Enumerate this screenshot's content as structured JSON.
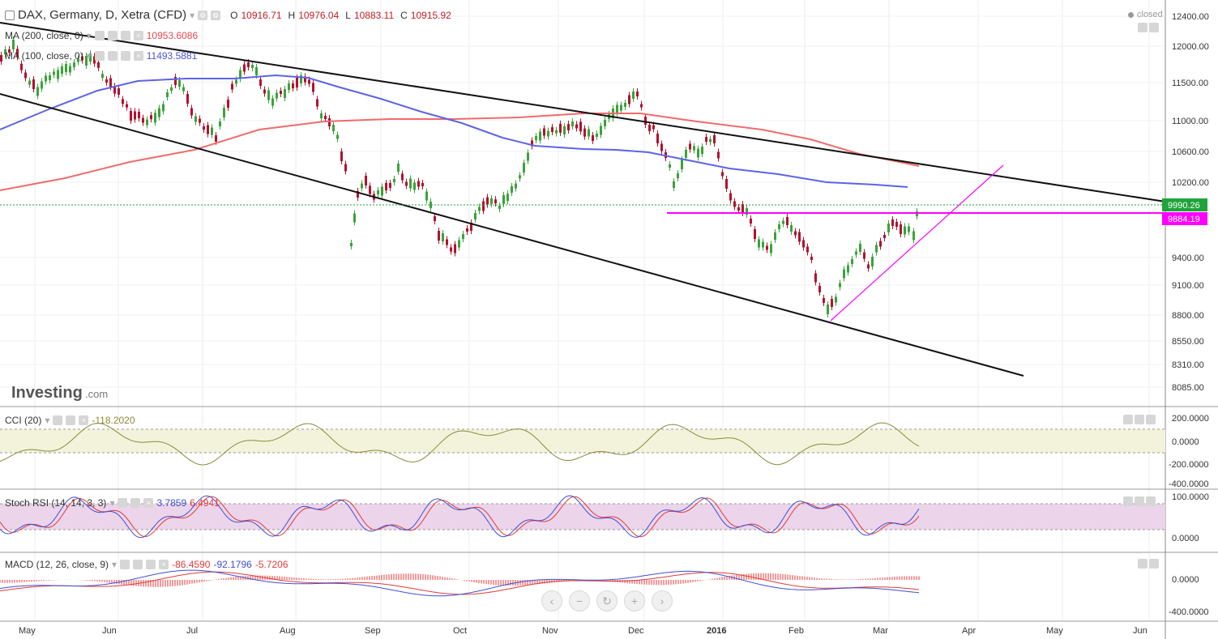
{
  "main_header": {
    "symbol": "DAX, Germany, D, Xetra (CFD)",
    "ohlc": [
      {
        "k": "O",
        "v": "10916.71"
      },
      {
        "k": "H",
        "v": "10976.04"
      },
      {
        "k": "L",
        "v": "10883.11"
      },
      {
        "k": "C",
        "v": "10915.92"
      }
    ],
    "status": "closed"
  },
  "indicators": {
    "ma200": {
      "label": "MA (200, close, 0)",
      "value": "10953.6086",
      "color": "#e8474c"
    },
    "ma100": {
      "label": "MA (100, close, 0)",
      "value": "11493.5881",
      "color": "#4a55d4"
    }
  },
  "watermark": {
    "brand": "Investing",
    "suffix": ".com"
  },
  "price_axis": {
    "ticks": [
      "12400.00",
      "12000.00",
      "11500.00",
      "11000.00",
      "10600.00",
      "10200.00",
      "9400.00",
      "9100.00",
      "8800.00",
      "8550.00",
      "8310.00",
      "8085.00"
    ],
    "current": "9990.26",
    "resistance": "9884.19"
  },
  "cci": {
    "label": "CCI (20)",
    "value": "-118.2020",
    "ticks": [
      "200.0000",
      "0.0000",
      "-200.0000",
      "-400.0000"
    ]
  },
  "stoch": {
    "label": "Stoch RSI (14, 14, 3, 3)",
    "k": "3.7859",
    "d": "6.4941",
    "ticks": [
      "100.0000",
      "0.0000"
    ]
  },
  "macd": {
    "label": "MACD (12, 26, close, 9)",
    "v1": "-86.4590",
    "v2": "-92.1796",
    "v3": "-5.7206",
    "ticks": [
      "0.0000",
      "-400.0000"
    ]
  },
  "time_axis": [
    "May",
    "Jun",
    "Jul",
    "Aug",
    "Sep",
    "Oct",
    "Nov",
    "Dec",
    "2016",
    "Feb",
    "Mar",
    "Apr",
    "May",
    "Jun"
  ],
  "nav_icons": [
    "chevron-left-icon",
    "zoom-out-icon",
    "reset-icon",
    "zoom-in-icon",
    "chevron-right-icon"
  ],
  "nav_glyphs": [
    "‹",
    "−",
    "↻",
    "+",
    "›"
  ],
  "colors": {
    "up": "#3aa33a",
    "down": "#b3112e",
    "ma200": "#f06b6b",
    "ma100": "#5c64e6",
    "trend": "#111111",
    "magenta": "#ff00ff",
    "cci": "#8a8a3a",
    "stoch_k": "#3d4fd6",
    "stoch_d": "#e23a3a",
    "current_badge": "#1fa33a",
    "resistance_badge": "#ff00ff"
  }
}
